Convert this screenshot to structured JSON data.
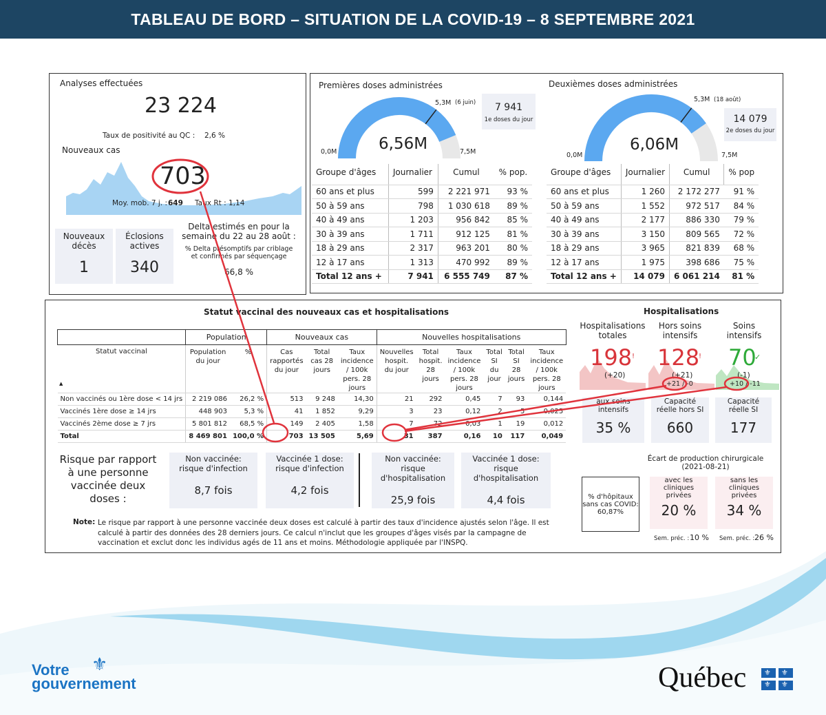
{
  "header": {
    "title": "TABLEAU DE BORD – SITUATION DE LA COVID-19 – 8 SEPTEMBRE 2021"
  },
  "analyses": {
    "title": "Analyses effectuées",
    "value": "23 224",
    "pos_label": "Taux de positivité au QC :",
    "pos_value": "2,6 %",
    "new_cases_label": "Nouveaux cas",
    "new_cases": "703",
    "moy_label": "Moy. mob. 7 j. :",
    "moy_value": "649",
    "rt_label": "Taux Rt :",
    "rt_value": "1,14",
    "deaths_label": "Nouveaux décès",
    "deaths": "1",
    "eclosions_label": "Éclosions actives",
    "eclosions": "340",
    "delta_title": "Delta estimés en pour la semaine du 22 au 28 août :",
    "delta_sub": "% Delta présomptifs par criblage et confirmés par séquençage",
    "delta_value": "66,8 %"
  },
  "first_doses": {
    "title": "Premières doses administrées",
    "value": "6,56M",
    "min": "0,0M",
    "max": "7,5M",
    "target": "5,3M",
    "target_note": "(6 juin)",
    "day_value": "7 941",
    "day_label": "1e doses du jour",
    "fraction": 0.875,
    "headers": [
      "Groupe d'âges",
      "Journalier",
      "Cumul",
      "% pop."
    ],
    "rows": [
      [
        "60 ans et plus",
        "599",
        "2 221 971",
        "93 %"
      ],
      [
        "50 à 59 ans",
        "798",
        "1 030 618",
        "89 %"
      ],
      [
        "40 à 49 ans",
        "1 203",
        "956 842",
        "85 %"
      ],
      [
        "30 à 39 ans",
        "1 711",
        "912 125",
        "81 %"
      ],
      [
        "18 à 29 ans",
        "2 317",
        "963 201",
        "80 %"
      ],
      [
        "12 à 17 ans",
        "1 313",
        "470 992",
        "89 %"
      ]
    ],
    "total": [
      "Total 12 ans +",
      "7 941",
      "6 555 749",
      "87 %"
    ]
  },
  "second_doses": {
    "title": "Deuxièmes doses administrées",
    "value": "6,06M",
    "min": "0,0M",
    "max": "7,5M",
    "target": "5,3M",
    "target_note": "(18 août)",
    "day_value": "14 079",
    "day_label": "2e doses du jour",
    "fraction": 0.808,
    "headers": [
      "Groupe d'âges",
      "Journalier",
      "Cumul",
      "% pop"
    ],
    "rows": [
      [
        "60 ans et plus",
        "1 260",
        "2 172 277",
        "91 %"
      ],
      [
        "50 à 59 ans",
        "1 552",
        "972 517",
        "84 %"
      ],
      [
        "40 à 49 ans",
        "2 177",
        "886 330",
        "79 %"
      ],
      [
        "30 à 39 ans",
        "3 150",
        "809 565",
        "72 %"
      ],
      [
        "18 à 29 ans",
        "3 965",
        "821 839",
        "68 %"
      ],
      [
        "12 à 17 ans",
        "1 975",
        "398 686",
        "75 %"
      ]
    ],
    "total": [
      "Total 12 ans +",
      "14 079",
      "6 061 214",
      "81 %"
    ]
  },
  "vaccinal": {
    "title": "Statut vaccinal des nouveaux cas et hospitalisations",
    "group_pop": "Population",
    "group_cases": "Nouveaux cas",
    "group_hosp": "Nouvelles hospitalisations",
    "col_status": "Statut vaccinal",
    "cols": [
      "Population du jour",
      "%",
      "Cas rapportés du jour",
      "Total cas 28 jours",
      "Taux incidence / 100k pers. 28 jours",
      "Nouvelles hospit. du jour",
      "Total hospit. 28 jours",
      "Taux incidence / 100k pers. 28 jours",
      "Total SI du jour",
      "Total SI 28 jours",
      "Taux incidence / 100k pers. 28 jours"
    ],
    "rows": [
      [
        "Non vaccinés ou 1ère dose < 14 jrs",
        "2 219 086",
        "26,2 %",
        "513",
        "9 248",
        "14,30",
        "21",
        "292",
        "0,45",
        "7",
        "93",
        "0,144"
      ],
      [
        "Vaccinés 1ère dose ≥ 14 jrs",
        "448 903",
        "5,3 %",
        "41",
        "1 852",
        "9,29",
        "3",
        "23",
        "0,12",
        "2",
        "5",
        "0,025"
      ],
      [
        "Vaccinés 2ème dose ≥ 7 jrs",
        "5 801 812",
        "68,5 %",
        "149",
        "2 405",
        "1,58",
        "7",
        "72",
        "0,03",
        "1",
        "19",
        "0,012"
      ]
    ],
    "total": [
      "Total",
      "8 469 801",
      "100,0 %",
      "703",
      "13 505",
      "5,69",
      "31",
      "387",
      "0,16",
      "10",
      "117",
      "0,049"
    ]
  },
  "risk": {
    "title": "Risque par rapport à une personne vaccinée deux doses :",
    "items": [
      {
        "label": "Non vaccinée: risque d'infection",
        "value": "8,7 fois"
      },
      {
        "label": "Vaccinée 1 dose: risque d'infection",
        "value": "4,2 fois"
      },
      {
        "label": "Non vaccinée: risque d'hospitalisation",
        "value": "25,9 fois"
      },
      {
        "label": "Vaccinée 1 dose: risque d'hospitalisation",
        "value": "4,4 fois"
      }
    ],
    "note_label": "Note:",
    "note": "Le risque par rapport à une personne vaccinée deux doses est calculé à partir des taux d'incidence ajustés selon l'âge. Il est calculé à partir des données des 28 derniers jours. Ce calcul n'inclut que les groupes d'âges visés par la campagne de vaccination et exclut donc les individus agés de 11 ans et moins. Méthodologie appliquée par l'INSPQ."
  },
  "hosp": {
    "title": "Hospitalisations",
    "total_label": "Hospitalisations totales",
    "total": "198",
    "total_delta": "(+20)",
    "hors_label": "Hors soins intensifs",
    "hors": "128",
    "hors_delta": "(+21)",
    "hors_sub": "+21 / -0",
    "si_label": "Soins intensifs",
    "si": "70",
    "si_delta": "(-1)",
    "si_sub": "+10 / -11",
    "cap_si_pct_label": "aux soins intensifs",
    "cap_si_pct": "35 %",
    "cap_hors_label": "Capacité réelle hors SI",
    "cap_hors": "660",
    "cap_si_label": "Capacité réelle SI",
    "cap_si": "177",
    "ecart_title": "Écart de production chirurgicale (2021-08-21)",
    "hop_label": "% d'hôpitaux sans cas COVID: 60,87%",
    "avec_label": "avec les cliniques privées",
    "avec": "20 %",
    "avec_prev_label": "Sem. préc. :",
    "avec_prev": "10 %",
    "sans_label": "sans les cliniques privées",
    "sans": "34 %",
    "sans_prev_label": "Sem. préc. :",
    "sans_prev": "26 %"
  },
  "footer": {
    "votre": "Votre",
    "gouvernement": "gouvernement",
    "quebec": "Québec"
  }
}
